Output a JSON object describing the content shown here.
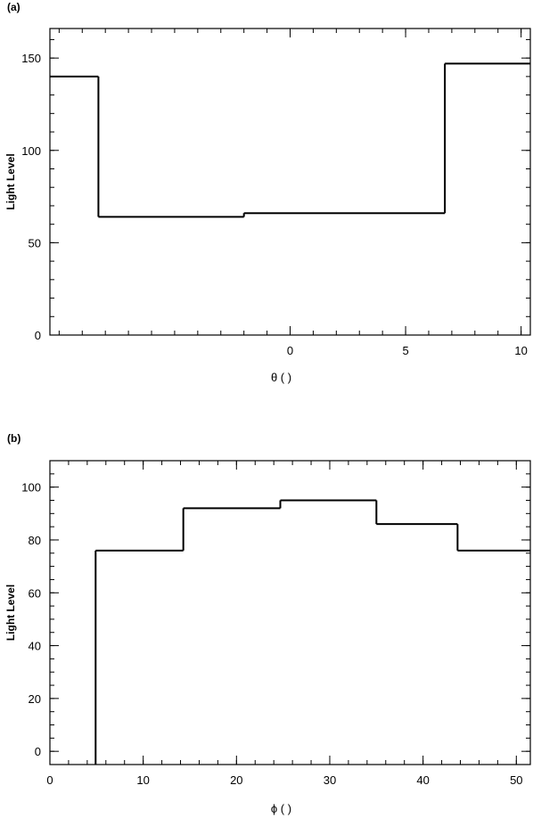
{
  "chart_data": [
    {
      "panel_label": "(a)",
      "type": "line",
      "step": true,
      "xlabel": "θ ( )",
      "ylabel": "Light Level",
      "xlim": [
        -10.4,
        10.4
      ],
      "ylim": [
        0,
        166
      ],
      "x_ticks": [
        0,
        5,
        10
      ],
      "y_ticks": [
        0,
        50,
        100,
        150
      ],
      "x_minor_step": 1,
      "y_minor_step": 10,
      "x": [
        -10.4,
        -8.3,
        -2.0,
        6.7,
        10.4
      ],
      "values": [
        140,
        64,
        66,
        147,
        147
      ],
      "color": "#000000",
      "grid": false
    },
    {
      "panel_label": "(b)",
      "type": "line",
      "step": true,
      "xlabel": "ϕ ( )",
      "ylabel": "Light Level",
      "xlim": [
        0,
        51.5
      ],
      "ylim": [
        -5,
        110
      ],
      "x_ticks": [
        0,
        10,
        20,
        30,
        40,
        50
      ],
      "y_ticks": [
        0,
        20,
        40,
        60,
        80,
        100
      ],
      "x_minor_step": 2,
      "y_minor_step": 5,
      "x": [
        4.9,
        14.3,
        24.7,
        35.0,
        43.7,
        51.5
      ],
      "values": [
        76,
        92,
        95,
        86,
        76,
        76
      ],
      "baseline": -5,
      "color": "#000000",
      "grid": false
    }
  ]
}
